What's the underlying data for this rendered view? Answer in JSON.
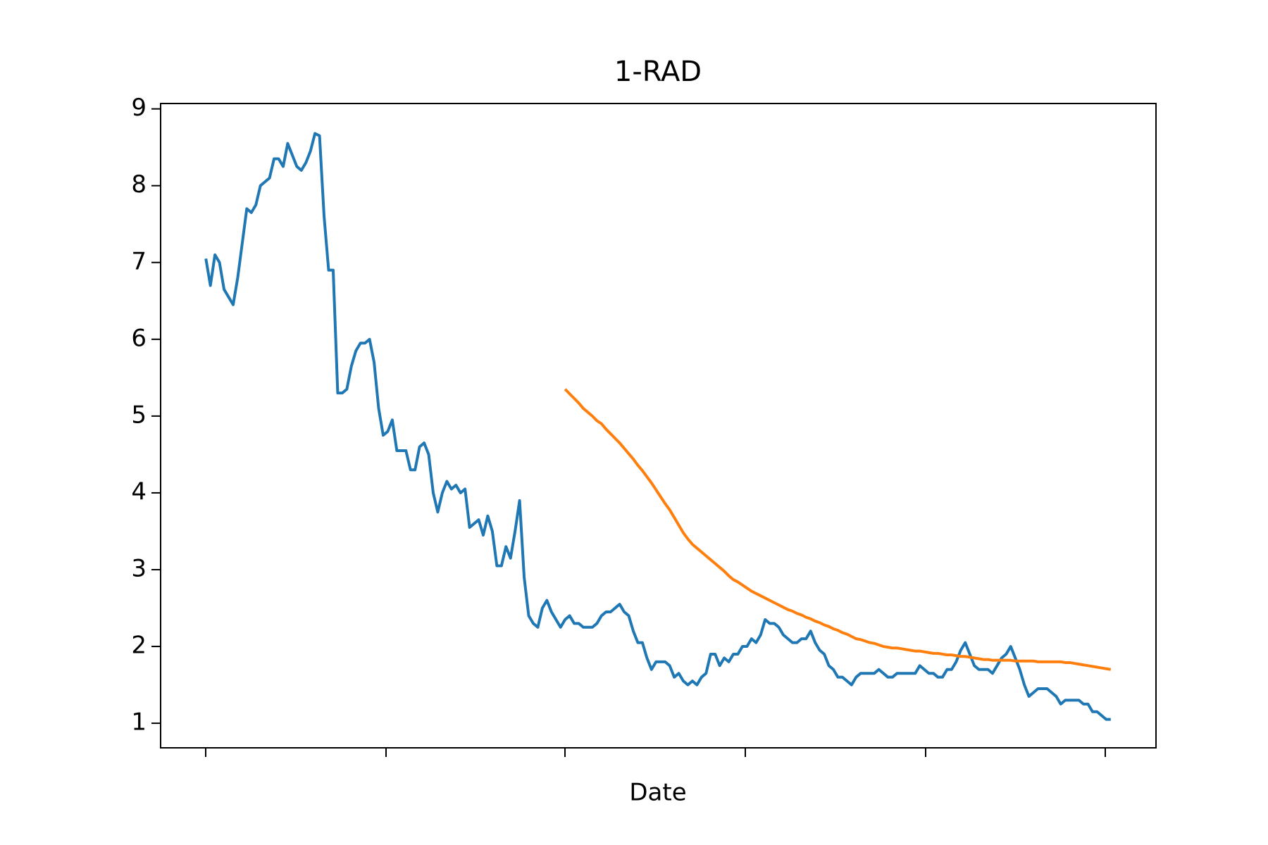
{
  "chart_data": {
    "type": "line",
    "title": "1-RAD",
    "x_label": "Date",
    "categories": [
      null,
      null,
      null,
      null,
      null,
      null,
      null,
      null,
      null,
      null,
      null,
      null,
      null,
      null,
      null,
      null,
      null,
      null,
      null,
      null,
      null,
      null,
      null,
      null,
      null,
      null,
      null,
      null,
      null,
      null,
      null,
      null,
      null,
      null,
      null,
      null,
      null,
      null,
      null,
      null,
      null,
      null,
      null,
      null,
      null,
      null,
      null,
      null,
      null,
      null,
      null,
      null,
      null,
      null,
      null,
      null,
      null,
      null,
      null,
      null,
      null,
      null,
      null,
      null,
      null,
      null,
      null,
      null,
      null,
      null,
      null,
      null,
      null,
      null,
      null,
      null,
      null,
      null,
      null,
      null,
      null,
      null,
      null,
      null,
      null,
      null,
      null,
      null,
      null,
      null,
      null,
      null,
      null,
      null,
      null,
      null,
      null,
      null,
      null,
      null,
      null,
      null,
      null,
      null,
      null,
      null,
      null,
      null,
      null,
      null,
      null,
      null,
      null,
      null,
      null,
      null,
      null,
      null,
      null,
      null,
      null,
      null,
      null,
      null,
      null,
      null,
      null,
      null,
      null,
      null,
      null,
      null,
      null,
      null,
      null,
      null,
      null,
      null,
      null,
      null,
      null,
      null,
      null,
      null,
      null,
      null,
      null,
      null,
      null,
      null,
      null,
      null,
      null,
      null,
      null,
      null,
      null,
      null,
      null,
      null,
      null,
      null,
      null,
      null,
      null,
      null,
      null,
      null,
      null,
      null,
      null,
      null,
      null,
      null,
      null,
      null,
      null,
      null,
      null,
      null,
      null,
      null,
      null,
      null,
      null,
      null,
      null,
      null,
      null,
      null,
      null,
      null,
      null,
      null,
      null,
      null,
      null,
      null,
      null,
      null
    ],
    "series": [
      {
        "color": "#1f77b4",
        "values": [
          7.05,
          6.7,
          7.1,
          7.0,
          6.65,
          6.55,
          6.45,
          6.8,
          7.25,
          7.7,
          7.65,
          7.75,
          8.0,
          8.05,
          8.1,
          8.35,
          8.35,
          8.25,
          8.55,
          8.4,
          8.25,
          8.2,
          8.3,
          8.45,
          8.68,
          8.65,
          7.6,
          6.9,
          6.9,
          5.3,
          5.3,
          5.35,
          5.65,
          5.85,
          5.95,
          5.95,
          6.0,
          5.7,
          5.1,
          4.75,
          4.8,
          4.95,
          4.55,
          4.55,
          4.55,
          4.3,
          4.3,
          4.6,
          4.65,
          4.5,
          4.0,
          3.75,
          4.0,
          4.15,
          4.05,
          4.1,
          4.0,
          4.05,
          3.55,
          3.6,
          3.65,
          3.45,
          3.7,
          3.5,
          3.05,
          3.05,
          3.3,
          3.15,
          3.5,
          3.9,
          2.9,
          2.4,
          2.3,
          2.25,
          2.5,
          2.6,
          2.45,
          2.35,
          2.25,
          2.35,
          2.4,
          2.3,
          2.3,
          2.25,
          2.25,
          2.25,
          2.3,
          2.4,
          2.45,
          2.45,
          2.5,
          2.55,
          2.45,
          2.4,
          2.2,
          2.05,
          2.05,
          1.85,
          1.7,
          1.8,
          1.8,
          1.8,
          1.75,
          1.6,
          1.65,
          1.55,
          1.5,
          1.55,
          1.5,
          1.6,
          1.65,
          1.9,
          1.9,
          1.75,
          1.85,
          1.8,
          1.9,
          1.9,
          2.0,
          2.0,
          2.1,
          2.05,
          2.15,
          2.35,
          2.3,
          2.3,
          2.25,
          2.15,
          2.1,
          2.05,
          2.05,
          2.1,
          2.1,
          2.2,
          2.05,
          1.95,
          1.9,
          1.75,
          1.7,
          1.6,
          1.6,
          1.55,
          1.5,
          1.6,
          1.65,
          1.65,
          1.65,
          1.65,
          1.7,
          1.65,
          1.6,
          1.6,
          1.65,
          1.65,
          1.65,
          1.65,
          1.65,
          1.75,
          1.7,
          1.65,
          1.65,
          1.6,
          1.6,
          1.7,
          1.7,
          1.8,
          1.95,
          2.05,
          1.9,
          1.75,
          1.7,
          1.7,
          1.7,
          1.65,
          1.75,
          1.85,
          1.9,
          2.0,
          1.85,
          1.7,
          1.5,
          1.35,
          1.4,
          1.45,
          1.45,
          1.45,
          1.4,
          1.35,
          1.25,
          1.3,
          1.3,
          1.3,
          1.3,
          1.25,
          1.25,
          1.15,
          1.15,
          1.1,
          1.05,
          1.05
        ]
      },
      {
        "color": "#ff7f0e",
        "values": [
          null,
          null,
          null,
          null,
          null,
          null,
          null,
          null,
          null,
          null,
          null,
          null,
          null,
          null,
          null,
          null,
          null,
          null,
          null,
          null,
          null,
          null,
          null,
          null,
          null,
          null,
          null,
          null,
          null,
          null,
          null,
          null,
          null,
          null,
          null,
          null,
          null,
          null,
          null,
          null,
          null,
          null,
          null,
          null,
          null,
          null,
          null,
          null,
          null,
          null,
          null,
          null,
          null,
          null,
          null,
          null,
          null,
          null,
          null,
          null,
          null,
          null,
          null,
          null,
          null,
          null,
          null,
          null,
          null,
          null,
          null,
          null,
          null,
          null,
          null,
          null,
          null,
          null,
          null,
          5.35,
          5.29,
          5.23,
          5.17,
          5.1,
          5.05,
          5.0,
          4.94,
          4.9,
          4.83,
          4.77,
          4.71,
          4.65,
          4.58,
          4.51,
          4.44,
          4.36,
          4.29,
          4.21,
          4.13,
          4.04,
          3.95,
          3.86,
          3.78,
          3.68,
          3.58,
          3.48,
          3.4,
          3.33,
          3.28,
          3.23,
          3.18,
          3.13,
          3.08,
          3.03,
          2.98,
          2.92,
          2.87,
          2.84,
          2.8,
          2.76,
          2.72,
          2.69,
          2.66,
          2.63,
          2.6,
          2.57,
          2.54,
          2.51,
          2.48,
          2.46,
          2.43,
          2.41,
          2.38,
          2.36,
          2.33,
          2.31,
          2.28,
          2.26,
          2.23,
          2.21,
          2.18,
          2.16,
          2.13,
          2.1,
          2.09,
          2.07,
          2.05,
          2.04,
          2.02,
          2.0,
          1.99,
          1.98,
          1.98,
          1.97,
          1.96,
          1.95,
          1.94,
          1.94,
          1.93,
          1.92,
          1.91,
          1.91,
          1.9,
          1.89,
          1.89,
          1.88,
          1.87,
          1.87,
          1.86,
          1.85,
          1.84,
          1.83,
          1.83,
          1.82,
          1.82,
          1.82,
          1.82,
          1.82,
          1.81,
          1.81,
          1.81,
          1.81,
          1.81,
          1.8,
          1.8,
          1.8,
          1.8,
          1.8,
          1.8,
          1.79,
          1.79,
          1.78,
          1.77,
          1.76,
          1.75,
          1.74,
          1.73,
          1.72,
          1.71,
          1.7
        ]
      }
    ],
    "ylim": [
      0.68,
      9.07
    ],
    "yticks": [
      1,
      2,
      3,
      4,
      5,
      6,
      7,
      8,
      9
    ]
  }
}
